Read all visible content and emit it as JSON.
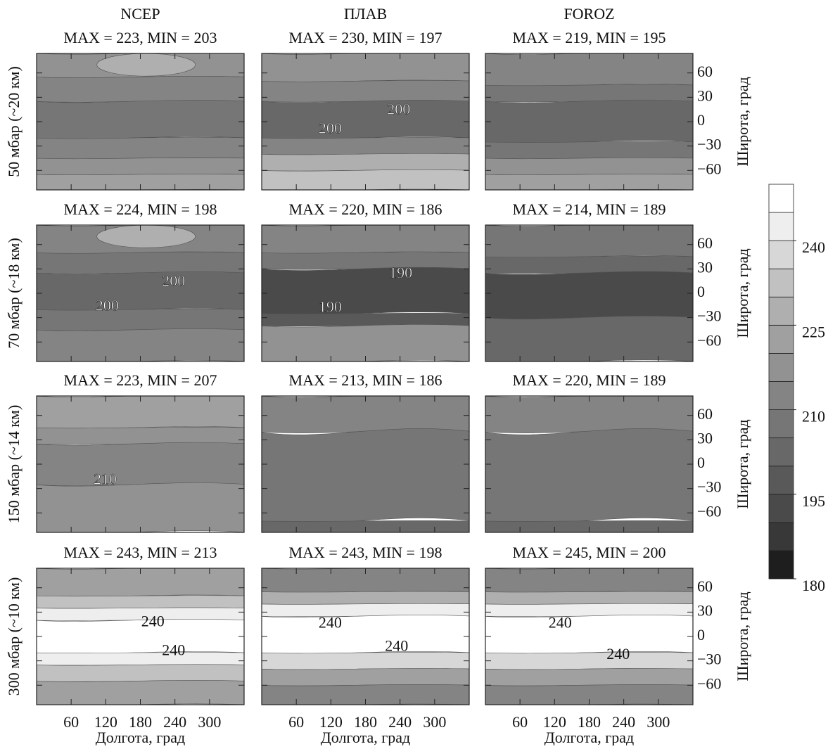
{
  "chart_data": [
    {
      "type": "contour",
      "model": "NCEP",
      "row_label": "50 мбар (~20 км)",
      "title": "MAX = 223, MIN = 203",
      "xlim": [
        0,
        360
      ],
      "ylim": [
        -84,
        84
      ],
      "xticks": [
        60,
        120,
        180,
        240,
        300
      ],
      "yticks": [
        60,
        30,
        0,
        {
          "value": -30,
          "label": "−30"
        },
        {
          "value": -60,
          "label": "−60"
        }
      ],
      "contour_labels": []
    },
    {
      "type": "contour",
      "model": "ПЛАВ",
      "title": "MAX = 230, MIN = 197",
      "xlim": [
        0,
        360
      ],
      "ylim": [
        -84,
        84
      ],
      "xticks": [
        60,
        120,
        180,
        240,
        300
      ],
      "yticks": [
        60,
        30,
        0,
        {
          "value": -30,
          "label": "−30"
        },
        {
          "value": -60,
          "label": "−60"
        }
      ],
      "contour_labels": [
        200,
        200
      ]
    },
    {
      "type": "contour",
      "model": "FOROZ",
      "title": "MAX = 219, MIN = 195",
      "ylabel": "Широта, град",
      "xlim": [
        0,
        360
      ],
      "ylim": [
        -84,
        84
      ],
      "xticks": [
        60,
        120,
        180,
        240,
        300
      ],
      "yticks": [
        60,
        30,
        0,
        {
          "value": -30,
          "label": "−30"
        },
        {
          "value": -60,
          "label": "−60"
        }
      ],
      "contour_labels": []
    },
    {
      "type": "contour",
      "row_label": "70 мбар (~18 км)",
      "title": "MAX = 224, MIN = 198",
      "xlim": [
        0,
        360
      ],
      "ylim": [
        -84,
        84
      ],
      "xticks": [
        60,
        120,
        180,
        240,
        300
      ],
      "yticks": [
        60,
        30,
        0,
        {
          "value": -30,
          "label": "−30"
        },
        {
          "value": -60,
          "label": "−60"
        }
      ],
      "contour_labels": [
        200,
        200
      ]
    },
    {
      "type": "contour",
      "title": "MAX = 220, MIN = 186",
      "xlim": [
        0,
        360
      ],
      "ylim": [
        -84,
        84
      ],
      "xticks": [
        60,
        120,
        180,
        240,
        300
      ],
      "yticks": [
        60,
        30,
        0,
        {
          "value": -30,
          "label": "−30"
        },
        {
          "value": -60,
          "label": "−60"
        }
      ],
      "contour_labels": [
        190,
        190
      ]
    },
    {
      "type": "contour",
      "title": "MAX = 214, MIN = 189",
      "ylabel": "Широта, град",
      "xlim": [
        0,
        360
      ],
      "ylim": [
        -84,
        84
      ],
      "xticks": [
        60,
        120,
        180,
        240,
        300
      ],
      "yticks": [
        60,
        30,
        0,
        {
          "value": -30,
          "label": "−30"
        },
        {
          "value": -60,
          "label": "−60"
        }
      ],
      "contour_labels": []
    },
    {
      "type": "contour",
      "row_label": "150 мбар (~14 км)",
      "title": "MAX = 223, MIN = 207",
      "xlim": [
        0,
        360
      ],
      "ylim": [
        -84,
        84
      ],
      "xticks": [
        60,
        120,
        180,
        240,
        300
      ],
      "yticks": [
        60,
        30,
        0,
        {
          "value": -30,
          "label": "−30"
        },
        {
          "value": -60,
          "label": "−60"
        }
      ],
      "contour_labels": [
        210
      ]
    },
    {
      "type": "contour",
      "title": "MAX = 213, MIN = 186",
      "xlim": [
        0,
        360
      ],
      "ylim": [
        -84,
        84
      ],
      "xticks": [
        60,
        120,
        180,
        240,
        300
      ],
      "yticks": [
        60,
        30,
        0,
        {
          "value": -30,
          "label": "−30"
        },
        {
          "value": -60,
          "label": "−60"
        }
      ],
      "contour_labels": []
    },
    {
      "type": "contour",
      "title": "MAX = 220, MIN = 189",
      "ylabel": "Широта, град",
      "xlim": [
        0,
        360
      ],
      "ylim": [
        -84,
        84
      ],
      "xticks": [
        60,
        120,
        180,
        240,
        300
      ],
      "yticks": [
        60,
        30,
        0,
        {
          "value": -30,
          "label": "−30"
        },
        {
          "value": -60,
          "label": "−60"
        }
      ],
      "contour_labels": []
    },
    {
      "type": "contour",
      "row_label": "300 мбар (~10 км)",
      "title": "MAX = 243, MIN = 213",
      "xlabel": "Долгота, град",
      "xlim": [
        0,
        360
      ],
      "ylim": [
        -84,
        84
      ],
      "xticks": [
        60,
        120,
        180,
        240,
        300
      ],
      "yticks": [
        60,
        30,
        0,
        {
          "value": -30,
          "label": "−30"
        },
        {
          "value": -60,
          "label": "−60"
        }
      ],
      "contour_labels": [
        240,
        240
      ]
    },
    {
      "type": "contour",
      "title": "MAX = 243, MIN = 198",
      "xlabel": "Долгота, град",
      "xlim": [
        0,
        360
      ],
      "ylim": [
        -84,
        84
      ],
      "xticks": [
        60,
        120,
        180,
        240,
        300
      ],
      "yticks": [
        60,
        30,
        0,
        {
          "value": -30,
          "label": "−30"
        },
        {
          "value": -60,
          "label": "−60"
        }
      ],
      "contour_labels": [
        240,
        240
      ]
    },
    {
      "type": "contour",
      "title": "MAX = 245, MIN = 200",
      "xlabel": "Долгота, град",
      "ylabel": "Широта, град",
      "xlim": [
        0,
        360
      ],
      "ylim": [
        -84,
        84
      ],
      "xticks": [
        60,
        120,
        180,
        240,
        300
      ],
      "yticks": [
        60,
        30,
        0,
        {
          "value": -30,
          "label": "−30"
        },
        {
          "value": -60,
          "label": "−60"
        }
      ],
      "contour_labels": [
        240,
        240
      ]
    },
    {
      "type": "colorbar",
      "ylim": [
        180,
        250
      ],
      "levels": [
        180,
        185,
        190,
        195,
        200,
        205,
        210,
        215,
        220,
        225,
        230,
        235,
        240,
        245,
        250
      ],
      "yticks": [
        180,
        195,
        210,
        225,
        240
      ],
      "colors": [
        "#1e1e1e",
        "#383838",
        "#4a4a4a",
        "#595959",
        "#686868",
        "#767676",
        "#848484",
        "#929292",
        "#a0a0a0",
        "#afafaf",
        "#c1c1c1",
        "#d7d7d7",
        "#eeeeee",
        "#ffffff"
      ]
    }
  ]
}
